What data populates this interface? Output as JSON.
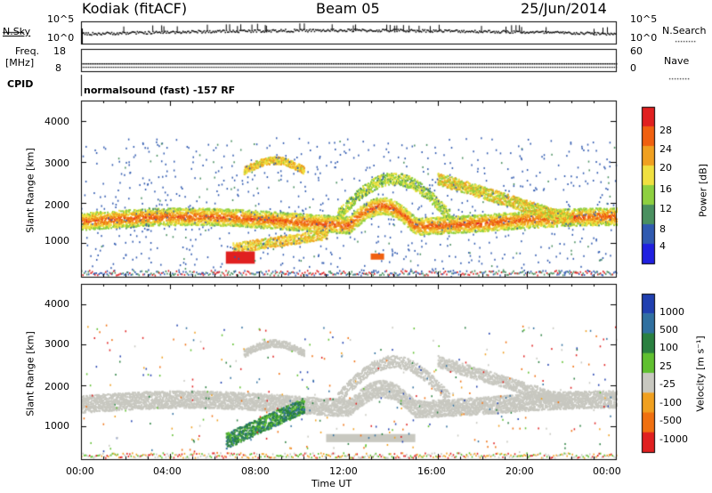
{
  "header": {
    "station": "Kodiak (fitACF)",
    "beam": "Beam 05",
    "date": "25/Jun/2014"
  },
  "noise_panel": {
    "left_label": "N.Sky",
    "right_label": "N.Search",
    "left_ticks": [
      "10^5",
      "10^0"
    ],
    "right_ticks": [
      "10^5",
      "10^0"
    ]
  },
  "freq_panel": {
    "left_label_1": "Freq.",
    "left_label_2": "[MHz]",
    "right_label": "Nave",
    "left_ticks": [
      "18",
      "8"
    ],
    "right_ticks": [
      "60",
      "0"
    ]
  },
  "cpid": {
    "label": "CPID",
    "mode": "normalsound (fast) -157 RF"
  },
  "x_axis": {
    "label": "Time UT",
    "ticks": [
      "00:00",
      "04:00",
      "08:00",
      "12:00",
      "16:00",
      "20:00",
      "00:00"
    ]
  },
  "power_panel": {
    "ylabel": "Slant Range [km]",
    "yticks": [
      "4000",
      "3000",
      "2000",
      "1000"
    ],
    "cbar_label": "Power [dB]",
    "cbar_ticks": [
      "28",
      "24",
      "20",
      "16",
      "12",
      "8",
      "4"
    ],
    "cbar_colors": [
      "#e02020",
      "#f06010",
      "#f0a020",
      "#f0e040",
      "#8ed040",
      "#4a9060",
      "#305ab0",
      "#2020e0"
    ]
  },
  "velocity_panel": {
    "ylabel": "Slant Range [km]",
    "yticks": [
      "4000",
      "3000",
      "2000",
      "1000"
    ],
    "cbar_label": "Velocity [m s⁻¹]",
    "cbar_ticks": [
      "1000",
      "500",
      "100",
      "25",
      "-25",
      "-100",
      "-500",
      "-1000"
    ],
    "cbar_colors": [
      "#2040b0",
      "#3070a0",
      "#2a8040",
      "#60c030",
      "#c8c8c0",
      "#f0a020",
      "#f07010",
      "#e02020"
    ]
  },
  "chart_data": [
    {
      "type": "line",
      "title": "N.Sky / N.Search",
      "x": [
        "00:00",
        "24:00"
      ],
      "yscale": "log",
      "ylim": [
        1,
        100000
      ]
    },
    {
      "type": "line",
      "title": "Freq. / Nave",
      "ylim_left": [
        8,
        18
      ],
      "ylim_right": [
        0,
        60
      ]
    },
    {
      "type": "heatmap",
      "title": "Power [dB]",
      "xlim_hours": [
        0,
        24
      ],
      "ylim_km": [
        180,
        4500
      ],
      "clim": [
        0,
        30
      ],
      "features": [
        {
          "time_start_h": 0,
          "time_end_h": 24,
          "range_km": 1550,
          "value": 20
        },
        {
          "time_start_h": 6.5,
          "time_end_h": 7.5,
          "range_km": 650,
          "value": 28
        },
        {
          "time_start_h": 7.5,
          "time_end_h": 10,
          "range_km": 3000,
          "value": 16
        },
        {
          "time_start_h": 12,
          "time_end_h": 15,
          "range_km": 2300,
          "value": 14
        },
        {
          "time_start_h": 17,
          "time_end_h": 22,
          "range_km": 1700,
          "value": 18
        }
      ]
    },
    {
      "type": "heatmap",
      "title": "Velocity [m s⁻¹]",
      "xlim_hours": [
        0,
        24
      ],
      "ylim_km": [
        180,
        4500
      ],
      "clim": [
        -1000,
        1000
      ],
      "features": [
        {
          "time_start_h": 0,
          "time_end_h": 24,
          "range_km": 1550,
          "value": 0
        },
        {
          "time_start_h": 6.5,
          "time_end_h": 10,
          "range_km": 750,
          "value": 150
        }
      ]
    }
  ]
}
